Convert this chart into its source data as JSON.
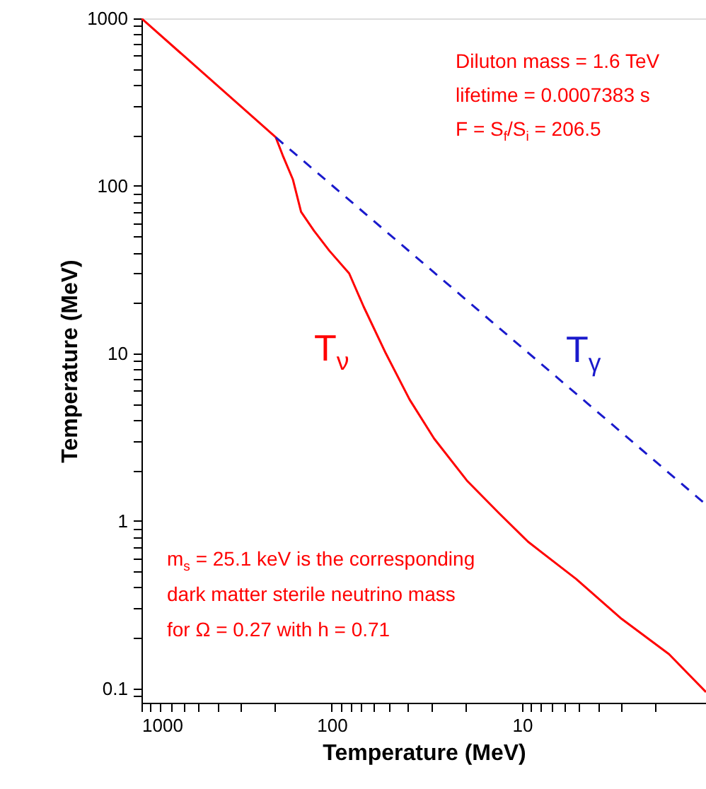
{
  "chart_data": {
    "type": "line",
    "xlabel": "Temperature (MeV)",
    "ylabel": "Temperature (MeV)",
    "log": "xy",
    "grid": false,
    "xlim": [
      1000,
      1.08
    ],
    "ylim": [
      0.082,
      1000
    ],
    "xticks": [
      1000,
      {
        "value": 900,
        "label": null
      },
      {
        "value": 800,
        "label": null
      },
      {
        "value": 700,
        "label": null
      },
      {
        "value": 600,
        "label": null
      },
      {
        "value": 500,
        "label": null
      },
      {
        "value": 400,
        "label": null
      },
      {
        "value": 300,
        "label": null
      },
      {
        "value": 200,
        "label": null
      },
      100,
      {
        "value": 90,
        "label": null
      },
      {
        "value": 80,
        "label": null
      },
      {
        "value": 70,
        "label": null
      },
      {
        "value": 60,
        "label": null
      },
      {
        "value": 50,
        "label": null
      },
      {
        "value": 40,
        "label": null
      },
      {
        "value": 30,
        "label": null
      },
      {
        "value": 20,
        "label": null
      },
      10,
      {
        "value": 9,
        "label": null
      },
      {
        "value": 8,
        "label": null
      },
      {
        "value": 7,
        "label": null
      },
      {
        "value": 6,
        "label": null
      },
      {
        "value": 5,
        "label": null
      },
      {
        "value": 4,
        "label": null
      },
      {
        "value": 3,
        "label": null
      },
      {
        "value": 2,
        "label": null
      }
    ],
    "yticks": [
      1000,
      {
        "value": 900,
        "label": null
      },
      {
        "value": 800,
        "label": null
      },
      {
        "value": 700,
        "label": null
      },
      {
        "value": 600,
        "label": null
      },
      {
        "value": 500,
        "label": null
      },
      {
        "value": 400,
        "label": null
      },
      {
        "value": 300,
        "label": null
      },
      {
        "value": 200,
        "label": null
      },
      100,
      {
        "value": 90,
        "label": null
      },
      {
        "value": 80,
        "label": null
      },
      {
        "value": 70,
        "label": null
      },
      {
        "value": 60,
        "label": null
      },
      {
        "value": 50,
        "label": null
      },
      {
        "value": 40,
        "label": null
      },
      {
        "value": 30,
        "label": null
      },
      {
        "value": 20,
        "label": null
      },
      10,
      {
        "value": 9,
        "label": null
      },
      {
        "value": 8,
        "label": null
      },
      {
        "value": 7,
        "label": null
      },
      {
        "value": 6,
        "label": null
      },
      {
        "value": 5,
        "label": null
      },
      {
        "value": 4,
        "label": null
      },
      {
        "value": 3,
        "label": null
      },
      {
        "value": 2,
        "label": null
      },
      1,
      {
        "value": 0.9,
        "label": null
      },
      {
        "value": 0.8,
        "label": null
      },
      {
        "value": 0.7,
        "label": null
      },
      {
        "value": 0.6,
        "label": null
      },
      {
        "value": 0.5,
        "label": null
      },
      {
        "value": 0.4,
        "label": null
      },
      {
        "value": 0.3,
        "label": null
      },
      {
        "value": 0.2,
        "label": null
      },
      0.1,
      {
        "value": 0.09,
        "label": null
      }
    ],
    "series": [
      {
        "name": "T$_{ν}$",
        "color": "#ff0000",
        "line_style": "solid",
        "x": [
          1000,
          197,
          181,
          160,
          145,
          124,
          103,
          81,
          68,
          52,
          39,
          29,
          19.5,
          13.2,
          9.3,
          5.2,
          3.0,
          1.69,
          1.08
        ],
        "values": [
          1000,
          195,
          152,
          109,
          70,
          54,
          41,
          30,
          19,
          10,
          5.3,
          3.1,
          1.74,
          1.11,
          0.75,
          0.45,
          0.26,
          0.16,
          0.095
        ]
      },
      {
        "name": "T$_{γ}$",
        "color": "#1a1acc",
        "line_style": "dashed",
        "x": [
          197,
          1.08
        ],
        "values": [
          195,
          1.25
        ]
      }
    ],
    "annotations": [
      "Diluton mass = 1.6 TeV",
      "lifetime = 0.0007383 s",
      "F = S$_{f}$/S$_{i}$ = 206.5",
      "m$_{s}$ = 25.1 keV is the corresponding",
      "dark matter sterile neutrino mass",
      "for Ω = 0.27 with h = 0.71"
    ]
  }
}
